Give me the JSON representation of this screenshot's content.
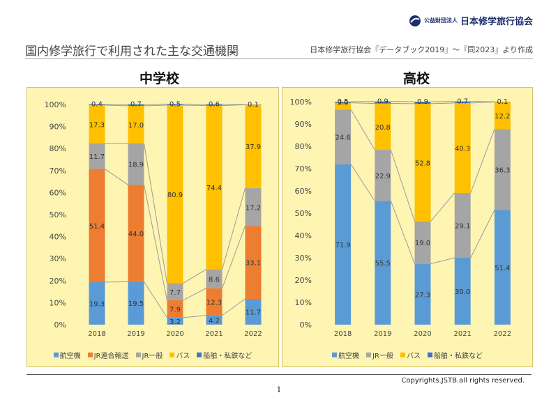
{
  "header": {
    "logo_small": "公益財団法人",
    "logo_big": "日本修学旅行協会",
    "title": "国内修学旅行で利用された主な交通機関",
    "source": "日本修学旅行協会『データブック2019』～『同2023』より作成"
  },
  "footer": {
    "copyright": "Copyrights.JSTB.all rights reserved.",
    "page_number": "1"
  },
  "colors": {
    "air": "#5b9bd5",
    "jr_group": "#ed7d31",
    "jr": "#a5a5a5",
    "bus": "#ffc000",
    "ship": "#4472c4",
    "panel_bg": "#fff5b3"
  },
  "chart_data": [
    {
      "type": "bar",
      "stacked": true,
      "title": "中学校",
      "categories": [
        "2018",
        "2019",
        "2020",
        "2021",
        "2022"
      ],
      "ylim": [
        0,
        100
      ],
      "yticks": [
        "0%",
        "10%",
        "20%",
        "30%",
        "40%",
        "50%",
        "60%",
        "70%",
        "80%",
        "90%",
        "100%"
      ],
      "grid": false,
      "legend_position": "bottom",
      "series": [
        {
          "name": "航空機",
          "color": "#5b9bd5",
          "values": [
            19.3,
            19.5,
            3.2,
            4.2,
            11.7
          ]
        },
        {
          "name": "JR連合輸送",
          "color": "#ed7d31",
          "values": [
            51.4,
            44.0,
            7.9,
            12.3,
            33.1
          ]
        },
        {
          "name": "JR一般",
          "color": "#a5a5a5",
          "values": [
            11.7,
            18.9,
            7.7,
            8.6,
            17.2
          ]
        },
        {
          "name": "バス",
          "color": "#ffc000",
          "values": [
            17.3,
            17.0,
            80.9,
            74.4,
            37.9
          ]
        },
        {
          "name": "船舶・私鉄など",
          "color": "#4472c4",
          "values": [
            0.4,
            0.7,
            0.5,
            0.6,
            0.1
          ]
        }
      ]
    },
    {
      "type": "bar",
      "stacked": true,
      "title": "高校",
      "categories": [
        "2018",
        "2019",
        "2020",
        "2021",
        "2022"
      ],
      "ylim": [
        0,
        100
      ],
      "yticks": [
        "0%",
        "10%",
        "20%",
        "30%",
        "40%",
        "50%",
        "60%",
        "70%",
        "80%",
        "90%",
        "100%"
      ],
      "grid": false,
      "legend_position": "bottom",
      "series": [
        {
          "name": "航空機",
          "color": "#5b9bd5",
          "values": [
            71.9,
            55.5,
            27.3,
            30.0,
            51.4
          ]
        },
        {
          "name": "JR一般",
          "color": "#a5a5a5",
          "values": [
            24.6,
            22.9,
            19.0,
            29.1,
            36.3
          ]
        },
        {
          "name": "バス",
          "color": "#ffc000",
          "values": [
            3.0,
            20.8,
            52.8,
            40.3,
            12.2
          ]
        },
        {
          "name": "船舶・私鉄など",
          "color": "#4472c4",
          "values": [
            0.5,
            0.9,
            0.9,
            0.7,
            0.1
          ]
        }
      ]
    }
  ]
}
